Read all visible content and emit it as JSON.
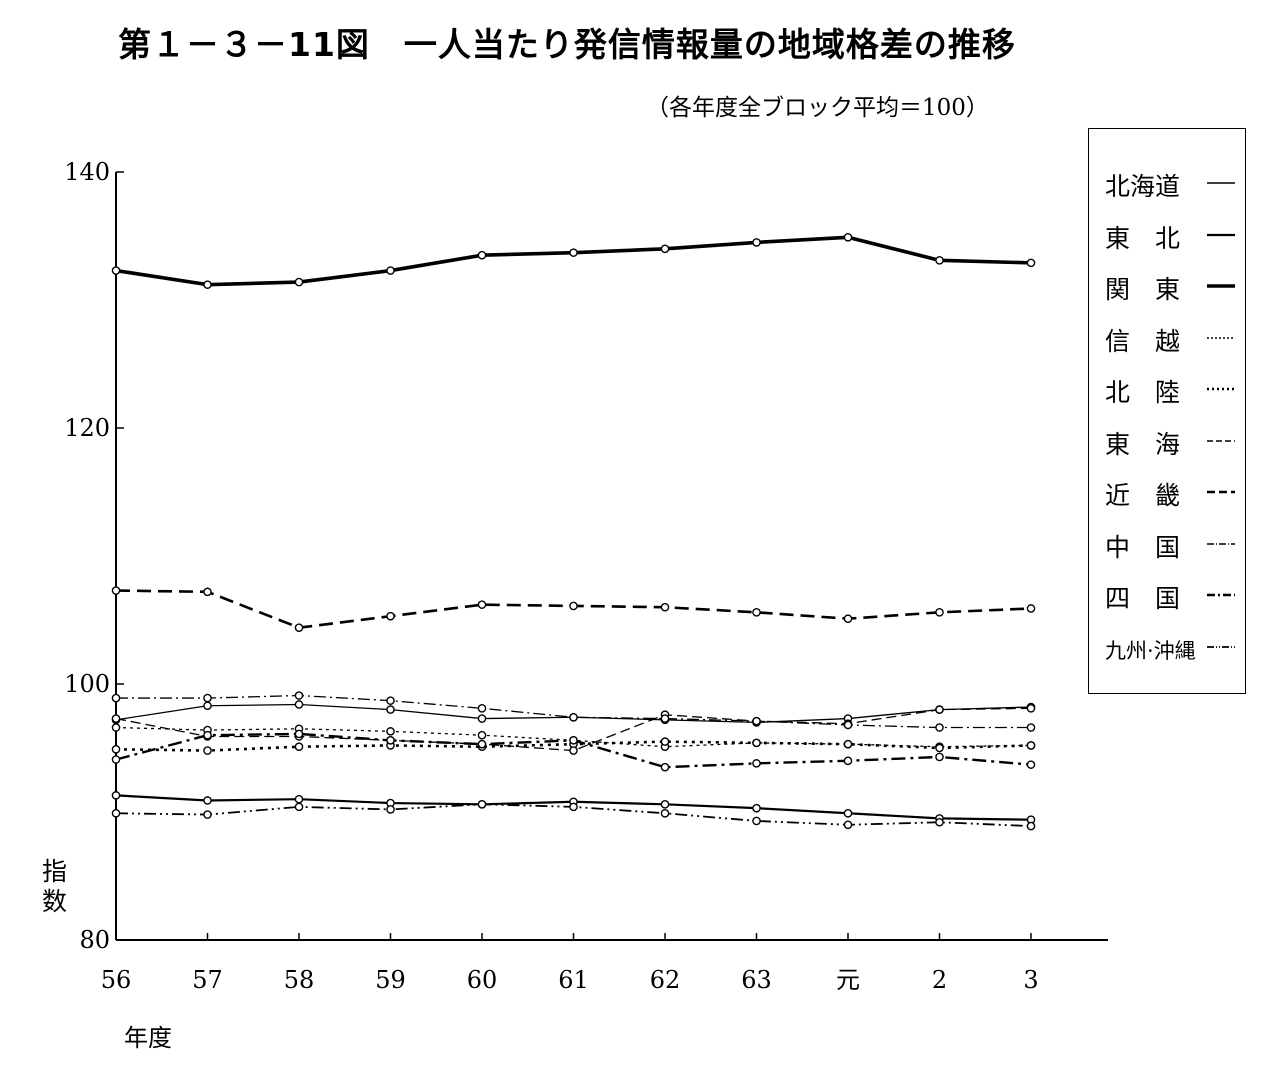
{
  "title": "第１－３－11図　一人当たり発信情報量の地域格差の推移",
  "subtitle": "（各年度全ブロック平均＝100）",
  "chart_data": {
    "type": "line",
    "title": "第１－３－11図　一人当たり発信情報量の地域格差の推移",
    "subtitle": "（各年度全ブロック平均＝100）",
    "ylabel": "指数",
    "xlabel": "年度",
    "ylim": [
      80,
      140
    ],
    "yticks": [
      "80",
      "100",
      "120",
      "140"
    ],
    "categories": [
      "56",
      "57",
      "58",
      "59",
      "60",
      "61",
      "62",
      "63",
      "元",
      "2",
      "3"
    ],
    "legend_placement": "right",
    "grid": false,
    "series": [
      {
        "name": "北海道",
        "style": "solid-thin",
        "values": [
          97.2,
          98.3,
          98.4,
          98.0,
          97.3,
          97.4,
          97.2,
          97.0,
          97.3,
          98.0,
          98.2
        ]
      },
      {
        "name": "東　北",
        "style": "solid",
        "values": [
          91.3,
          90.9,
          91.0,
          90.7,
          90.6,
          90.8,
          90.6,
          90.3,
          89.9,
          89.5,
          89.4
        ]
      },
      {
        "name": "関　東",
        "style": "solid-thick",
        "values": [
          132.3,
          131.2,
          131.4,
          132.3,
          133.5,
          133.7,
          134.0,
          134.5,
          134.9,
          133.1,
          132.9
        ]
      },
      {
        "name": "信　越",
        "style": "dotted-thin",
        "values": [
          96.6,
          96.4,
          96.5,
          96.3,
          96.0,
          95.6,
          95.1,
          95.4,
          95.3,
          95.1,
          95.2
        ]
      },
      {
        "name": "北　陸",
        "style": "dotted-thick",
        "values": [
          94.9,
          94.8,
          95.1,
          95.2,
          95.1,
          95.3,
          95.5,
          95.4,
          95.3,
          95.0,
          95.2
        ]
      },
      {
        "name": "東　海",
        "style": "dashed-thin",
        "values": [
          97.3,
          95.9,
          95.9,
          95.6,
          95.3,
          94.8,
          97.6,
          97.1,
          96.9,
          98.0,
          98.1
        ]
      },
      {
        "name": "近　畿",
        "style": "dashed-thick",
        "values": [
          107.3,
          107.2,
          104.4,
          105.3,
          106.2,
          106.1,
          106.0,
          105.6,
          105.1,
          105.6,
          105.9
        ]
      },
      {
        "name": "中　国",
        "style": "dashdot-thin",
        "values": [
          98.9,
          98.9,
          99.1,
          98.7,
          98.1,
          97.4,
          97.3,
          97.1,
          96.8,
          96.6,
          96.6
        ]
      },
      {
        "name": "四　国",
        "style": "dashdot-thick",
        "values": [
          94.1,
          96.0,
          96.1,
          95.6,
          95.3,
          95.6,
          93.5,
          93.8,
          94.0,
          94.3,
          93.7
        ]
      },
      {
        "name": "九州·沖縄",
        "style": "dashdotdot",
        "values": [
          89.9,
          89.8,
          90.4,
          90.2,
          90.6,
          90.4,
          89.9,
          89.3,
          89.0,
          89.2,
          88.9
        ]
      }
    ]
  },
  "colors": {
    "ink": "#000000",
    "background": "#ffffff"
  }
}
